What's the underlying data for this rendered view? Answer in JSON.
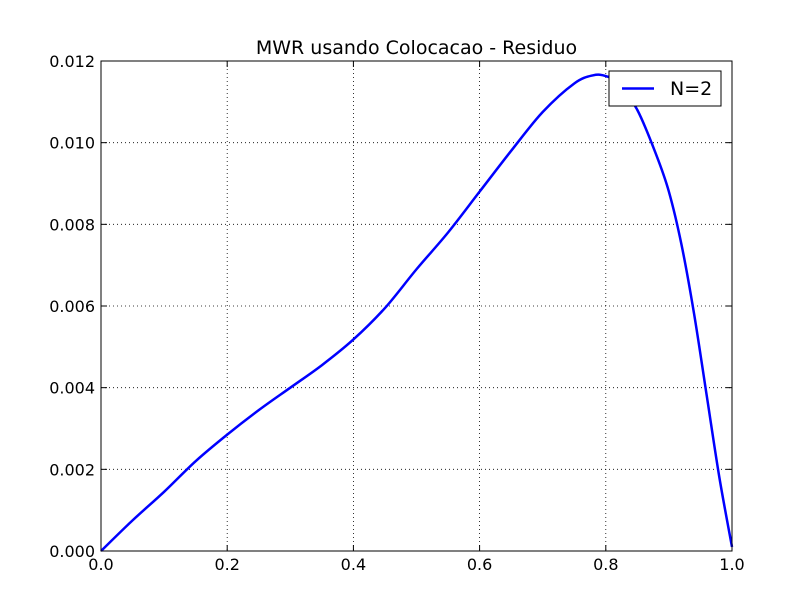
{
  "chart_data": {
    "type": "line",
    "title": "MWR usando Colocacao - Residuo",
    "xlabel": "",
    "ylabel": "",
    "xlim": [
      0.0,
      1.0
    ],
    "ylim": [
      0.0,
      0.012
    ],
    "grid": true,
    "legend_position": "top-right",
    "x_ticks": [
      "0.0",
      "0.2",
      "0.4",
      "0.6",
      "0.8",
      "1.0"
    ],
    "y_ticks": [
      "0.000",
      "0.002",
      "0.004",
      "0.006",
      "0.008",
      "0.010",
      "0.012"
    ],
    "series": [
      {
        "name": "N=2",
        "color": "#0000ff",
        "x": [
          0.0,
          0.05,
          0.1,
          0.15,
          0.2,
          0.25,
          0.3,
          0.35,
          0.4,
          0.45,
          0.5,
          0.55,
          0.6,
          0.65,
          0.7,
          0.75,
          0.78,
          0.8,
          0.82,
          0.85,
          0.88,
          0.9,
          0.92,
          0.94,
          0.96,
          0.98,
          1.0
        ],
        "y": [
          0.0,
          0.00075,
          0.00145,
          0.0022,
          0.00285,
          0.00345,
          0.004,
          0.00455,
          0.00518,
          0.00595,
          0.0069,
          0.0078,
          0.0088,
          0.0098,
          0.01075,
          0.01145,
          0.01165,
          0.01163,
          0.01145,
          0.0108,
          0.0097,
          0.0088,
          0.0075,
          0.0058,
          0.0038,
          0.0018,
          0.0001
        ]
      }
    ]
  }
}
